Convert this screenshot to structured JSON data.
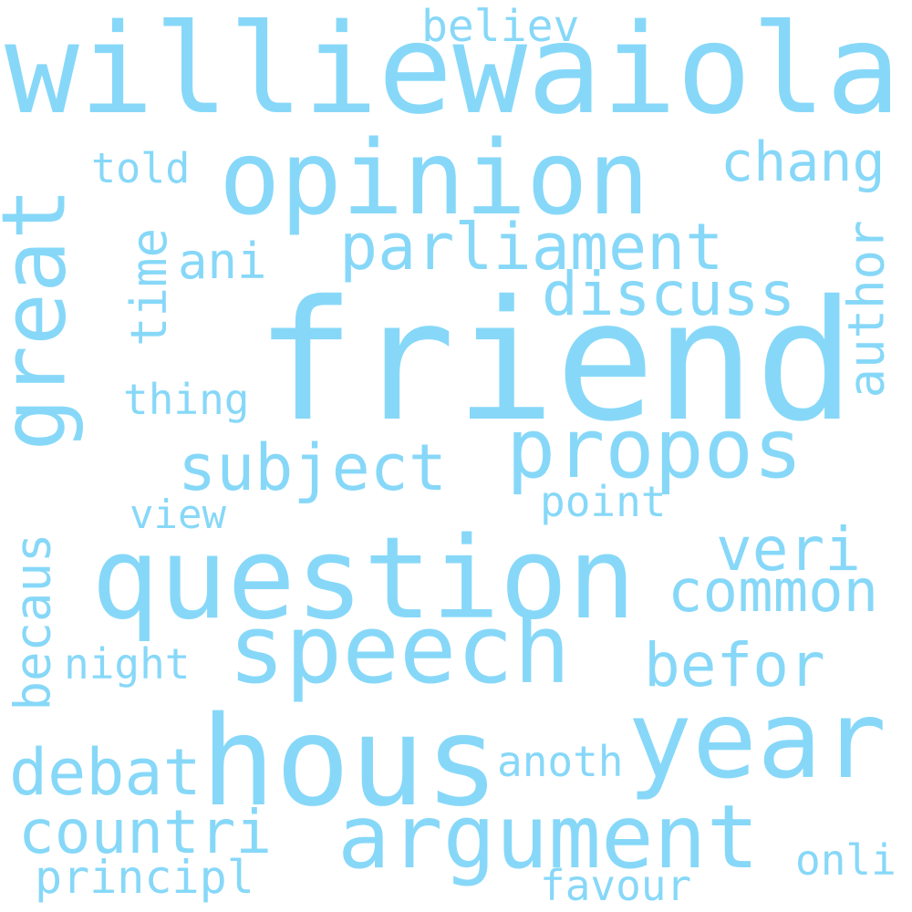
{
  "words": {
    "williewaiola": "williewaiola",
    "believ": "believ",
    "opinion": "opinion",
    "told": "told",
    "chang": "chang",
    "great": "great",
    "parliament": "parliament",
    "ani": "ani",
    "time": "time",
    "author": "author",
    "discuss": "discuss",
    "friend": "friend",
    "thing": "thing",
    "propos": "propos",
    "subject": "subject",
    "point": "point",
    "view": "view",
    "becaus": "becaus",
    "question": "question",
    "veri": "veri",
    "common": "common",
    "speech": "speech",
    "night": "night",
    "befor": "befor",
    "year": "year",
    "hous": "hous",
    "debat": "debat",
    "anoth": "anoth",
    "countri": "countri",
    "argument": "argument",
    "onli": "onli",
    "principl": "principl",
    "favour": "favour"
  },
  "colors": {
    "word": "#87d8f8",
    "background": "#ffffff"
  }
}
